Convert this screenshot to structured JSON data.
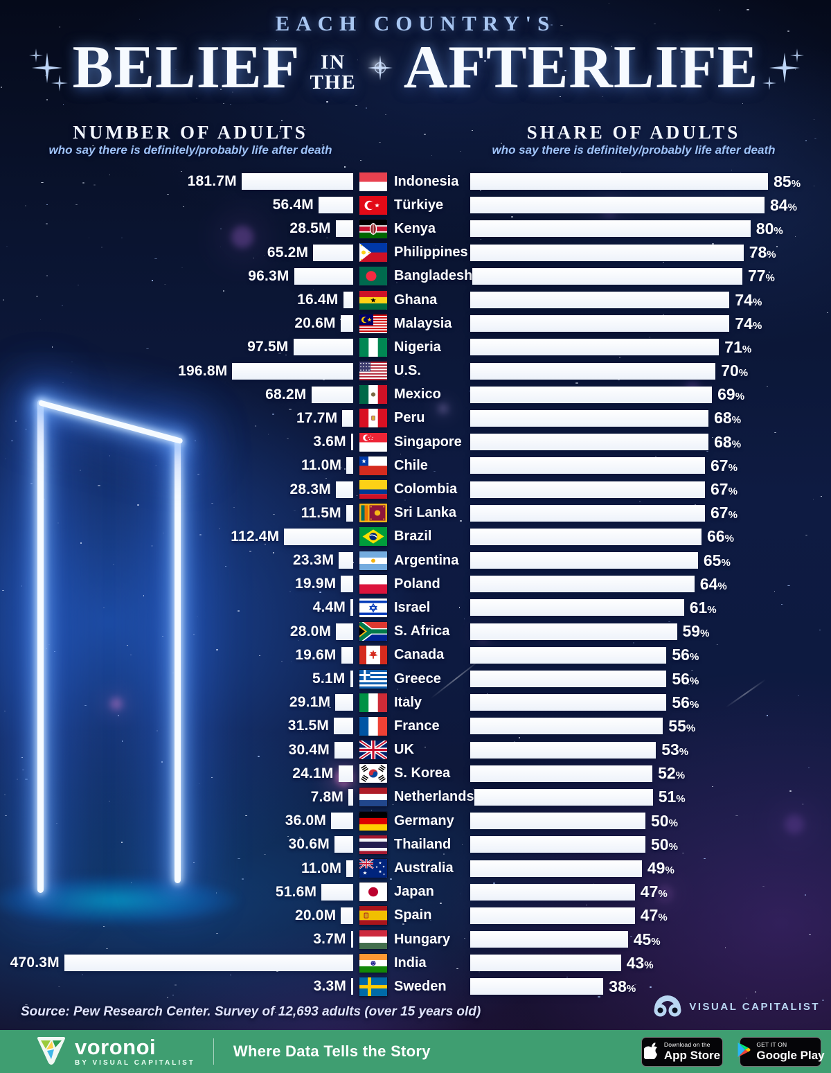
{
  "title": {
    "kicker": "EACH COUNTRY'S",
    "word1": "BELIEF",
    "small1": "IN",
    "small2": "THE",
    "word2": "AFTERLIFE"
  },
  "columns": {
    "left_heading": "NUMBER OF ADULTS",
    "left_subheading": "who say there is definitely/probably life after death",
    "right_heading": "SHARE OF ADULTS",
    "right_subheading": "who say there is definitely/probably life after death"
  },
  "rows": [
    {
      "country": "Indonesia",
      "flag": "id",
      "adults_label": "181.7M",
      "adults_millions": 181.7,
      "share_pct": 85
    },
    {
      "country": "Türkiye",
      "flag": "tr",
      "adults_label": "56.4M",
      "adults_millions": 56.4,
      "share_pct": 84
    },
    {
      "country": "Kenya",
      "flag": "ke",
      "adults_label": "28.5M",
      "adults_millions": 28.5,
      "share_pct": 80
    },
    {
      "country": "Philippines",
      "flag": "ph",
      "adults_label": "65.2M",
      "adults_millions": 65.2,
      "share_pct": 78
    },
    {
      "country": "Bangladesh",
      "flag": "bd",
      "adults_label": "96.3M",
      "adults_millions": 96.3,
      "share_pct": 77
    },
    {
      "country": "Ghana",
      "flag": "gh",
      "adults_label": "16.4M",
      "adults_millions": 16.4,
      "share_pct": 74
    },
    {
      "country": "Malaysia",
      "flag": "my",
      "adults_label": "20.6M",
      "adults_millions": 20.6,
      "share_pct": 74
    },
    {
      "country": "Nigeria",
      "flag": "ng",
      "adults_label": "97.5M",
      "adults_millions": 97.5,
      "share_pct": 71
    },
    {
      "country": "U.S.",
      "flag": "us",
      "adults_label": "196.8M",
      "adults_millions": 196.8,
      "share_pct": 70
    },
    {
      "country": "Mexico",
      "flag": "mx",
      "adults_label": "68.2M",
      "adults_millions": 68.2,
      "share_pct": 69
    },
    {
      "country": "Peru",
      "flag": "pe",
      "adults_label": "17.7M",
      "adults_millions": 17.7,
      "share_pct": 68
    },
    {
      "country": "Singapore",
      "flag": "sg",
      "adults_label": "3.6M",
      "adults_millions": 3.6,
      "share_pct": 68
    },
    {
      "country": "Chile",
      "flag": "cl",
      "adults_label": "11.0M",
      "adults_millions": 11.0,
      "share_pct": 67
    },
    {
      "country": "Colombia",
      "flag": "co",
      "adults_label": "28.3M",
      "adults_millions": 28.3,
      "share_pct": 67
    },
    {
      "country": "Sri Lanka",
      "flag": "lk",
      "adults_label": "11.5M",
      "adults_millions": 11.5,
      "share_pct": 67
    },
    {
      "country": "Brazil",
      "flag": "br",
      "adults_label": "112.4M",
      "adults_millions": 112.4,
      "share_pct": 66
    },
    {
      "country": "Argentina",
      "flag": "ar",
      "adults_label": "23.3M",
      "adults_millions": 23.3,
      "share_pct": 65
    },
    {
      "country": "Poland",
      "flag": "pl",
      "adults_label": "19.9M",
      "adults_millions": 19.9,
      "share_pct": 64
    },
    {
      "country": "Israel",
      "flag": "il",
      "adults_label": "4.4M",
      "adults_millions": 4.4,
      "share_pct": 61
    },
    {
      "country": "S. Africa",
      "flag": "za",
      "adults_label": "28.0M",
      "adults_millions": 28.0,
      "share_pct": 59
    },
    {
      "country": "Canada",
      "flag": "ca",
      "adults_label": "19.6M",
      "adults_millions": 19.6,
      "share_pct": 56
    },
    {
      "country": "Greece",
      "flag": "gr",
      "adults_label": "5.1M",
      "adults_millions": 5.1,
      "share_pct": 56
    },
    {
      "country": "Italy",
      "flag": "it",
      "adults_label": "29.1M",
      "adults_millions": 29.1,
      "share_pct": 56
    },
    {
      "country": "France",
      "flag": "fr",
      "adults_label": "31.5M",
      "adults_millions": 31.5,
      "share_pct": 55
    },
    {
      "country": "UK",
      "flag": "gb",
      "adults_label": "30.4M",
      "adults_millions": 30.4,
      "share_pct": 53
    },
    {
      "country": "S. Korea",
      "flag": "kr",
      "adults_label": "24.1M",
      "adults_millions": 24.1,
      "share_pct": 52
    },
    {
      "country": "Netherlands",
      "flag": "nl",
      "adults_label": "7.8M",
      "adults_millions": 7.8,
      "share_pct": 51
    },
    {
      "country": "Germany",
      "flag": "de",
      "adults_label": "36.0M",
      "adults_millions": 36.0,
      "share_pct": 50
    },
    {
      "country": "Thailand",
      "flag": "th",
      "adults_label": "30.6M",
      "adults_millions": 30.6,
      "share_pct": 50
    },
    {
      "country": "Australia",
      "flag": "au",
      "adults_label": "11.0M",
      "adults_millions": 11.0,
      "share_pct": 49
    },
    {
      "country": "Japan",
      "flag": "jp",
      "adults_label": "51.6M",
      "adults_millions": 51.6,
      "share_pct": 47
    },
    {
      "country": "Spain",
      "flag": "es",
      "adults_label": "20.0M",
      "adults_millions": 20.0,
      "share_pct": 47
    },
    {
      "country": "Hungary",
      "flag": "hu",
      "adults_label": "3.7M",
      "adults_millions": 3.7,
      "share_pct": 45
    },
    {
      "country": "India",
      "flag": "in",
      "adults_label": "470.3M",
      "adults_millions": 470.3,
      "share_pct": 43
    },
    {
      "country": "Sweden",
      "flag": "se",
      "adults_label": "3.3M",
      "adults_millions": 3.3,
      "share_pct": 38
    }
  ],
  "chart_data": {
    "type": "bar",
    "title": "EACH COUNTRY'S BELIEF IN THE AFTERLIFE",
    "orientation": "horizontal-dual",
    "categories": [
      "Indonesia",
      "Türkiye",
      "Kenya",
      "Philippines",
      "Bangladesh",
      "Ghana",
      "Malaysia",
      "Nigeria",
      "U.S.",
      "Mexico",
      "Peru",
      "Singapore",
      "Chile",
      "Colombia",
      "Sri Lanka",
      "Brazil",
      "Argentina",
      "Poland",
      "Israel",
      "S. Africa",
      "Canada",
      "Greece",
      "Italy",
      "France",
      "UK",
      "S. Korea",
      "Netherlands",
      "Germany",
      "Thailand",
      "Australia",
      "Japan",
      "Spain",
      "Hungary",
      "India",
      "Sweden"
    ],
    "series": [
      {
        "name": "Number of adults who say there is definitely/probably life after death (millions)",
        "values": [
          181.7,
          56.4,
          28.5,
          65.2,
          96.3,
          16.4,
          20.6,
          97.5,
          196.8,
          68.2,
          17.7,
          3.6,
          11.0,
          28.3,
          11.5,
          112.4,
          23.3,
          19.9,
          4.4,
          28.0,
          19.6,
          5.1,
          29.1,
          31.5,
          30.4,
          24.1,
          7.8,
          36.0,
          30.6,
          11.0,
          51.6,
          20.0,
          3.7,
          470.3,
          3.3
        ]
      },
      {
        "name": "Share of adults who say there is definitely/probably life after death (%)",
        "values": [
          85,
          84,
          80,
          78,
          77,
          74,
          74,
          71,
          70,
          69,
          68,
          68,
          67,
          67,
          67,
          66,
          65,
          64,
          61,
          59,
          56,
          56,
          56,
          55,
          53,
          52,
          51,
          50,
          50,
          49,
          47,
          47,
          45,
          43,
          38
        ]
      }
    ],
    "legend_position": "none",
    "grid": false
  },
  "source": "Source: Pew Research Center. Survey of 12,693 adults (over 15 years old)",
  "vc_logo": {
    "line1": "VISUAL",
    "line2": "CAPITALIST"
  },
  "footer": {
    "brand": "voronoi",
    "byline": "BY VISUAL CAPITALIST",
    "tagline": "Where Data Tells the Story",
    "app_store_small": "Download on the",
    "app_store_big": "App Store",
    "google_play_small": "GET IT ON",
    "google_play_big": "Google Play"
  },
  "colors": {
    "background_navy": "#0a1430",
    "glow_blue": "#2766e0",
    "bar_white": "#f7f9fd",
    "accent_light_blue": "#a9c7f2",
    "footer_green": "#3f9e71",
    "badge_black": "#050508"
  }
}
